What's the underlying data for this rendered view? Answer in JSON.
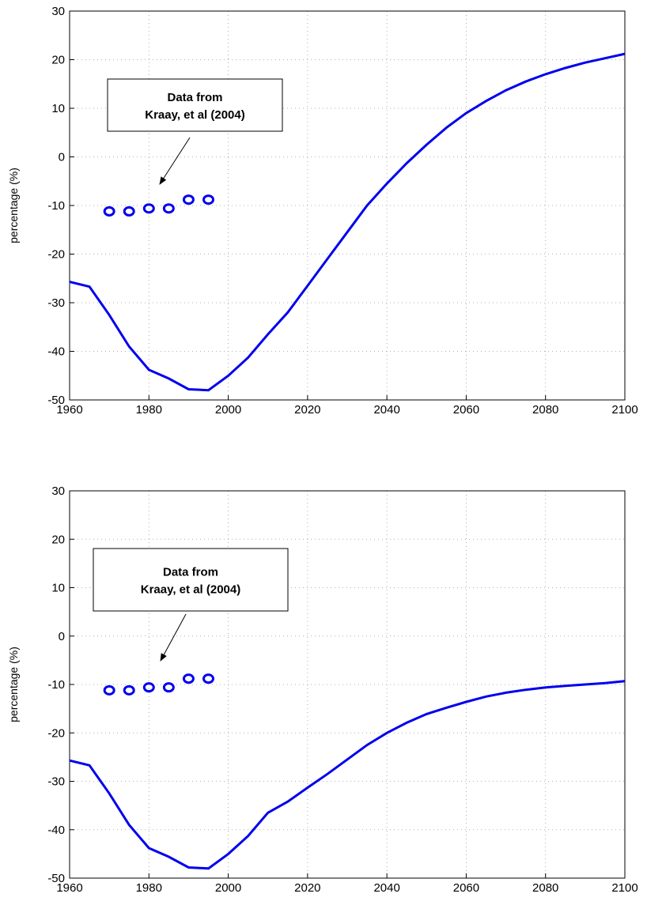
{
  "chart_data": [
    {
      "type": "line",
      "ylabel": "percentage (%)",
      "color": "#0000ee",
      "x": [
        1960,
        1965,
        1970,
        1975,
        1980,
        1985,
        1990,
        1995,
        2000,
        2005,
        2010,
        2015,
        2020,
        2025,
        2030,
        2035,
        2040,
        2045,
        2050,
        2055,
        2060,
        2065,
        2070,
        2075,
        2080,
        2085,
        2090,
        2095,
        2100
      ],
      "values": [
        -25.7,
        -26.7,
        -32.5,
        -39,
        -43.8,
        -45.6,
        -47.8,
        -48,
        -45,
        -41.3,
        -36.5,
        -32,
        -26.5,
        -21,
        -15.5,
        -10,
        -5.5,
        -1.3,
        2.5,
        6,
        9,
        11.5,
        13.7,
        15.5,
        17,
        18.3,
        19.4,
        20.3,
        21.2
      ],
      "scatter": {
        "x": [
          1970,
          1975,
          1980,
          1985,
          1990,
          1995
        ],
        "values": [
          -11.2,
          -11.2,
          -10.6,
          -10.6,
          -8.8,
          -8.8
        ]
      },
      "annotation": [
        "Data from",
        "Kraay, et al (2004)"
      ],
      "xlim": [
        1960,
        2100
      ],
      "xticks": [
        1960,
        1980,
        2000,
        2020,
        2040,
        2060,
        2080,
        2100
      ],
      "ylim": [
        -50,
        30
      ],
      "yticks": [
        -50,
        -40,
        -30,
        -20,
        -10,
        0,
        10,
        20,
        30
      ],
      "grid": true
    },
    {
      "type": "line",
      "ylabel": "percentage (%)",
      "color": "#0000ee",
      "x": [
        1960,
        1965,
        1970,
        1975,
        1980,
        1985,
        1990,
        1995,
        2000,
        2005,
        2010,
        2015,
        2020,
        2025,
        2030,
        2035,
        2040,
        2045,
        2050,
        2055,
        2060,
        2065,
        2070,
        2075,
        2080,
        2085,
        2090,
        2095,
        2100
      ],
      "values": [
        -25.7,
        -26.7,
        -32.5,
        -39,
        -43.8,
        -45.6,
        -47.8,
        -48,
        -45,
        -41.3,
        -36.5,
        -34.2,
        -31.3,
        -28.5,
        -25.5,
        -22.5,
        -20,
        -17.9,
        -16.1,
        -14.8,
        -13.6,
        -12.5,
        -11.7,
        -11.1,
        -10.6,
        -10.3,
        -10,
        -9.7,
        -9.3
      ],
      "scatter": {
        "x": [
          1970,
          1975,
          1980,
          1985,
          1990,
          1995
        ],
        "values": [
          -11.2,
          -11.2,
          -10.6,
          -10.6,
          -8.8,
          -8.8
        ]
      },
      "annotation": [
        "Data from",
        "Kraay, et al (2004)"
      ],
      "xlim": [
        1960,
        2100
      ],
      "xticks": [
        1960,
        1980,
        2000,
        2020,
        2040,
        2060,
        2080,
        2100
      ],
      "ylim": [
        -50,
        30
      ],
      "yticks": [
        -50,
        -40,
        -30,
        -20,
        -10,
        0,
        10,
        20,
        30
      ],
      "grid": true
    }
  ]
}
